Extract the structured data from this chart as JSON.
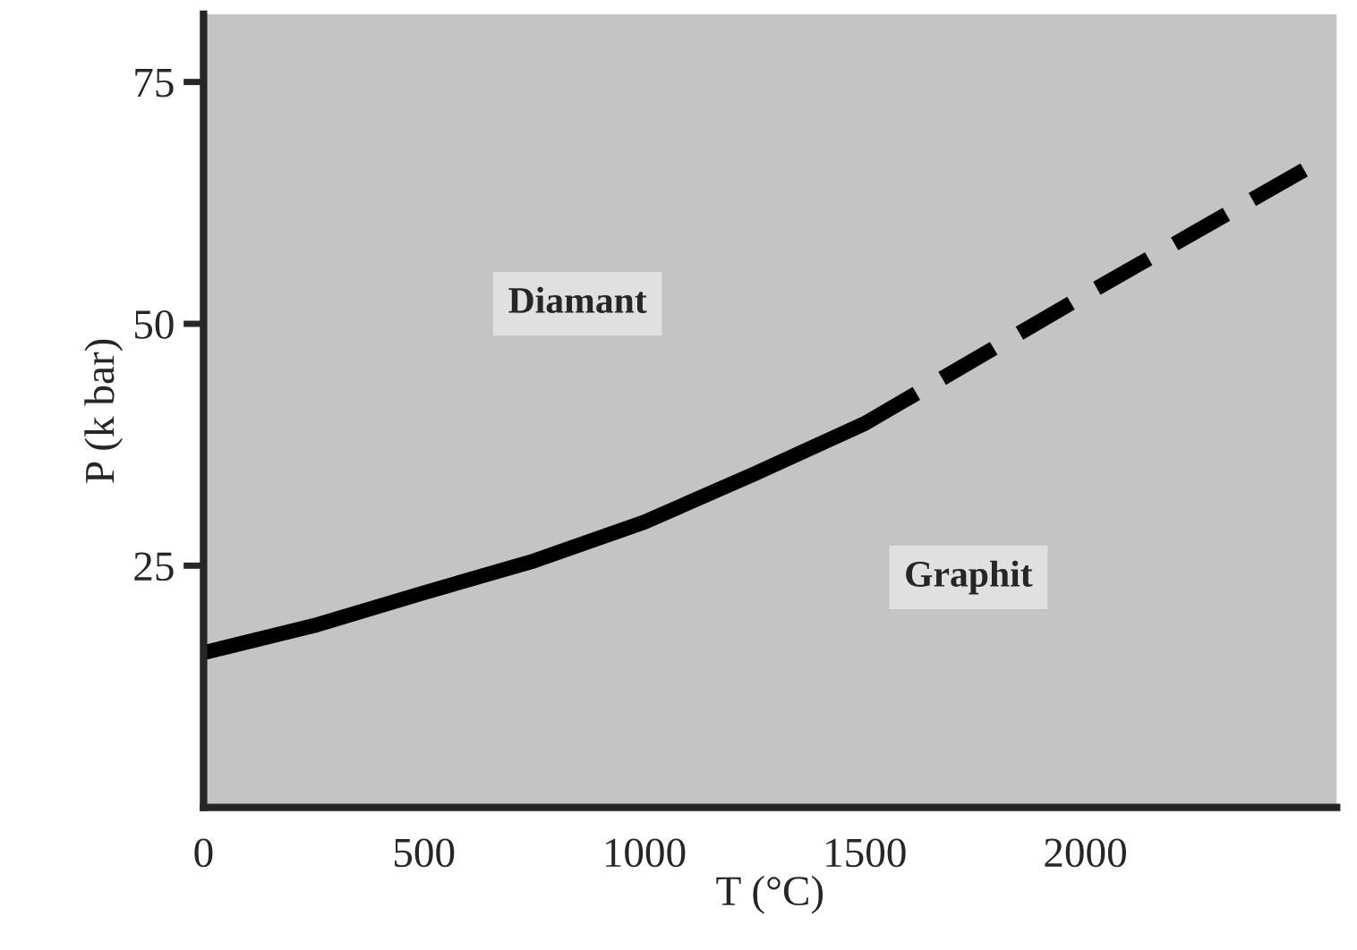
{
  "chart_data": {
    "type": "line",
    "xlabel": "T (°C)",
    "ylabel": "P (k bar)",
    "xlim": [
      0,
      2570
    ],
    "ylim": [
      0,
      82
    ],
    "xticks": [
      0,
      500,
      1000,
      1500,
      2000
    ],
    "yticks": [
      25,
      50,
      75
    ],
    "grid": false,
    "marker": "none",
    "series": [
      {
        "color": "#000000",
        "line_style": "solid",
        "x": [
          0,
          250,
          500,
          750,
          1000,
          1250,
          1500
        ],
        "values": [
          16,
          18.8,
          22.2,
          25.5,
          29.5,
          34.5,
          39.7
        ]
      },
      {
        "color": "#000000",
        "line_style": "dashed",
        "x": [
          1500,
          2000,
          2500
        ],
        "values": [
          39.7,
          53,
          66
        ]
      }
    ],
    "annotations": [
      "Diamant",
      "Graphit"
    ]
  }
}
